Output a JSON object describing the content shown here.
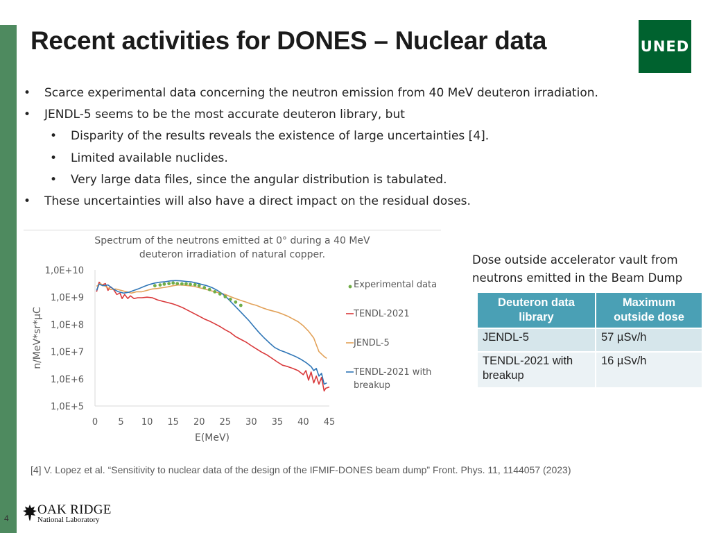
{
  "slide": {
    "title": "Recent activities for DONES – Nuclear data",
    "logo_text": "UNED",
    "page_number": "4"
  },
  "bullets": [
    {
      "marker": "•",
      "text": "Scarce experimental data concerning the neutron emission from 40 MeV deuteron irradiation."
    },
    {
      "marker": "•",
      "text": "JENDL-5 seems to be the most accurate deuteron library, but"
    },
    {
      "marker": "•",
      "text": "Disparity of the results reveals the existence of large uncertainties [4]."
    },
    {
      "marker": "•",
      "text": "Limited available nuclides."
    },
    {
      "marker": "•",
      "text": "Very large data files, since the angular distribution is tabulated."
    },
    {
      "marker": "•",
      "text": "These uncertainties will also have a direct impact on the residual doses."
    }
  ],
  "chart_data": {
    "type": "line",
    "title": [
      "Spectrum of the neutrons emitted at 0° during a 40 MeV",
      "deuteron irradiation of natural copper."
    ],
    "xlabel": "E(MeV)",
    "ylabel": "n/MeV*sr*µC",
    "xlim": [
      0,
      45
    ],
    "ylim_log10": [
      5,
      10
    ],
    "x_ticks": [
      "0",
      "5",
      "10",
      "15",
      "20",
      "25",
      "30",
      "35",
      "40",
      "45"
    ],
    "y_ticks": [
      "1,0E+10",
      "1,0E+9",
      "1,0E+8",
      "1,0E+7",
      "1,0E+6",
      "1,0E+5"
    ],
    "legend_position": "right",
    "series": [
      {
        "name": "Experimental data",
        "style": "points",
        "color": "#70ad47",
        "points": [
          [
            11.5,
            9.42
          ],
          [
            12.5,
            9.45
          ],
          [
            13.3,
            9.48
          ],
          [
            14.2,
            9.5
          ],
          [
            15,
            9.52
          ],
          [
            15.8,
            9.5
          ],
          [
            16.7,
            9.49
          ],
          [
            17.5,
            9.49
          ],
          [
            18.3,
            9.47
          ],
          [
            19.2,
            9.46
          ],
          [
            20,
            9.42
          ],
          [
            21,
            9.35
          ],
          [
            22,
            9.28
          ],
          [
            23,
            9.2
          ],
          [
            24,
            9.12
          ],
          [
            25,
            9.02
          ],
          [
            26,
            8.92
          ],
          [
            27,
            8.82
          ],
          [
            28,
            8.7
          ]
        ]
      },
      {
        "name": "TENDL-2021",
        "style": "line",
        "color": "#d9383a",
        "points": [
          [
            0.3,
            9.2
          ],
          [
            0.8,
            9.55
          ],
          [
            1.3,
            9.45
          ],
          [
            2,
            9.5
          ],
          [
            2.5,
            9.25
          ],
          [
            3,
            9.38
          ],
          [
            3.5,
            9.3
          ],
          [
            4.2,
            9.1
          ],
          [
            4.8,
            9.15
          ],
          [
            5.2,
            8.95
          ],
          [
            5.7,
            9.1
          ],
          [
            6.3,
            8.95
          ],
          [
            6.8,
            9.05
          ],
          [
            7.5,
            8.95
          ],
          [
            8.2,
            8.98
          ],
          [
            9,
            8.98
          ],
          [
            10,
            9.0
          ],
          [
            11,
            8.98
          ],
          [
            12,
            8.9
          ],
          [
            13,
            8.85
          ],
          [
            14,
            8.8
          ],
          [
            15,
            8.75
          ],
          [
            16,
            8.68
          ],
          [
            17,
            8.6
          ],
          [
            18,
            8.5
          ],
          [
            19,
            8.4
          ],
          [
            20,
            8.3
          ],
          [
            21,
            8.2
          ],
          [
            22,
            8.12
          ],
          [
            23,
            8.02
          ],
          [
            24,
            7.92
          ],
          [
            25,
            7.8
          ],
          [
            26,
            7.7
          ],
          [
            27,
            7.55
          ],
          [
            28,
            7.45
          ],
          [
            29,
            7.35
          ],
          [
            30,
            7.22
          ],
          [
            31,
            7.1
          ],
          [
            32,
            6.98
          ],
          [
            33,
            6.88
          ],
          [
            34,
            6.75
          ],
          [
            35,
            6.62
          ],
          [
            36,
            6.5
          ],
          [
            37,
            6.45
          ],
          [
            38,
            6.38
          ],
          [
            39,
            6.3
          ],
          [
            40,
            6.15
          ],
          [
            40.5,
            6.3
          ],
          [
            41,
            5.95
          ],
          [
            41.5,
            6.25
          ],
          [
            42,
            5.85
          ],
          [
            42.5,
            6.1
          ],
          [
            43,
            5.8
          ],
          [
            43.5,
            6.05
          ],
          [
            44,
            5.55
          ],
          [
            44.3,
            5.65
          ],
          [
            45,
            5.7
          ]
        ]
      },
      {
        "name": "JENDL-5",
        "style": "line",
        "color": "#e2a158",
        "points": [
          [
            0.3,
            9.4
          ],
          [
            1,
            9.5
          ],
          [
            2,
            9.4
          ],
          [
            3,
            9.28
          ],
          [
            4,
            9.3
          ],
          [
            5,
            9.25
          ],
          [
            6,
            9.2
          ],
          [
            7,
            9.15
          ],
          [
            8,
            9.2
          ],
          [
            9,
            9.2
          ],
          [
            10,
            9.25
          ],
          [
            11,
            9.3
          ],
          [
            12,
            9.32
          ],
          [
            13,
            9.35
          ],
          [
            14,
            9.38
          ],
          [
            15,
            9.42
          ],
          [
            16,
            9.45
          ],
          [
            17,
            9.44
          ],
          [
            18,
            9.42
          ],
          [
            19,
            9.4
          ],
          [
            20,
            9.35
          ],
          [
            21,
            9.3
          ],
          [
            22,
            9.25
          ],
          [
            23,
            9.2
          ],
          [
            24,
            9.15
          ],
          [
            25,
            9.1
          ],
          [
            26,
            9.02
          ],
          [
            27,
            8.95
          ],
          [
            28,
            8.88
          ],
          [
            29,
            8.82
          ],
          [
            30,
            8.75
          ],
          [
            31,
            8.7
          ],
          [
            32,
            8.62
          ],
          [
            33,
            8.55
          ],
          [
            34,
            8.5
          ],
          [
            35,
            8.45
          ],
          [
            36,
            8.38
          ],
          [
            37,
            8.3
          ],
          [
            38,
            8.2
          ],
          [
            39,
            8.1
          ],
          [
            40,
            7.95
          ],
          [
            41,
            7.75
          ],
          [
            42,
            7.5
          ],
          [
            43,
            7.0
          ],
          [
            44,
            6.82
          ],
          [
            44.5,
            6.75
          ]
        ]
      },
      {
        "name": "TENDL-2021 with breakup",
        "style": "line",
        "color": "#2e75b6",
        "points": [
          [
            0.3,
            9.25
          ],
          [
            0.8,
            9.48
          ],
          [
            1.5,
            9.42
          ],
          [
            2.5,
            9.45
          ],
          [
            3.5,
            9.3
          ],
          [
            4.5,
            9.2
          ],
          [
            5.5,
            9.15
          ],
          [
            6.5,
            9.18
          ],
          [
            7.5,
            9.25
          ],
          [
            8.5,
            9.32
          ],
          [
            9.5,
            9.4
          ],
          [
            10.5,
            9.47
          ],
          [
            11.5,
            9.52
          ],
          [
            12.5,
            9.55
          ],
          [
            13.5,
            9.57
          ],
          [
            14.5,
            9.6
          ],
          [
            15.5,
            9.61
          ],
          [
            16.5,
            9.6
          ],
          [
            17.5,
            9.58
          ],
          [
            18.5,
            9.56
          ],
          [
            19.5,
            9.52
          ],
          [
            20.5,
            9.47
          ],
          [
            21.5,
            9.42
          ],
          [
            22.5,
            9.35
          ],
          [
            23.5,
            9.25
          ],
          [
            24.5,
            9.12
          ],
          [
            25.5,
            8.95
          ],
          [
            26.5,
            8.75
          ],
          [
            27.5,
            8.55
          ],
          [
            28.5,
            8.35
          ],
          [
            29.5,
            8.15
          ],
          [
            30.5,
            7.92
          ],
          [
            31.5,
            7.7
          ],
          [
            32.5,
            7.5
          ],
          [
            33.5,
            7.32
          ],
          [
            34.5,
            7.15
          ],
          [
            35.5,
            7.05
          ],
          [
            36.5,
            6.98
          ],
          [
            37.5,
            6.9
          ],
          [
            38.5,
            6.82
          ],
          [
            39.5,
            6.72
          ],
          [
            40.5,
            6.6
          ],
          [
            41.5,
            6.45
          ],
          [
            42,
            6.3
          ],
          [
            42.5,
            6.38
          ],
          [
            43,
            6.1
          ],
          [
            43.5,
            6.2
          ],
          [
            44,
            5.8
          ],
          [
            44.5,
            5.85
          ]
        ]
      }
    ]
  },
  "dose_panel": {
    "caption_line1": "Dose outside accelerator vault from",
    "caption_line2": "neutrons emitted in the Beam Dump",
    "headers": [
      [
        "Deuteron data",
        "library"
      ],
      [
        "Maximum",
        "outside dose"
      ]
    ],
    "rows": [
      {
        "library": [
          "JENDL-5"
        ],
        "dose": "57 µSv/h"
      },
      {
        "library": [
          "TENDL-2021 with",
          "breakup"
        ],
        "dose": "16 µSv/h"
      }
    ]
  },
  "reference": "[4] V. Lopez et al. “Sensitivity to nuclear data of the design of the IFMIF-DONES beam dump” Front. Phys. 11, 1144057 (2023)",
  "footer_logo": {
    "line1": "OAK RIDGE",
    "line2": "National Laboratory"
  },
  "colors": {
    "side_bar": "#4e8a5f",
    "uned_green": "#00622f",
    "table_header": "#4aa0b5"
  }
}
